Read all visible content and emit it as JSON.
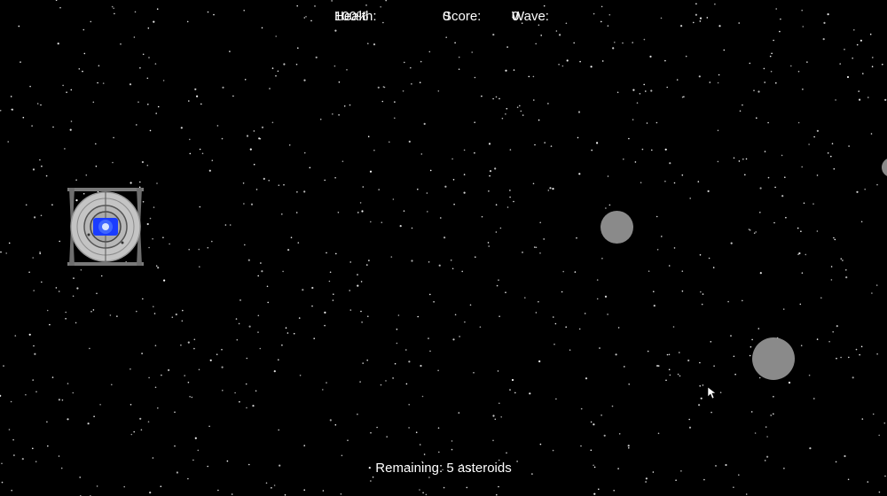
{
  "hud": {
    "health_label": "Health:",
    "health_value": "100%",
    "score_label": "Score:",
    "score_value": "0",
    "wave_label": "Wave:",
    "wave_value": "0",
    "remaining_label": "Remaining:",
    "remaining_count": "5",
    "remaining_unit": "asteroids"
  },
  "player": {
    "icon": "spaceship-icon",
    "health_fraction": 1.0
  },
  "asteroids": {
    "total_remaining": 5,
    "visible_count": 3
  },
  "colors": {
    "background": "#000000",
    "stars": "#ffffff",
    "asteroid": "#8a8a8a",
    "ship_ring": "#c0c0c0",
    "ship_core": "#1a3cff",
    "hud_text": "#ffffff"
  }
}
